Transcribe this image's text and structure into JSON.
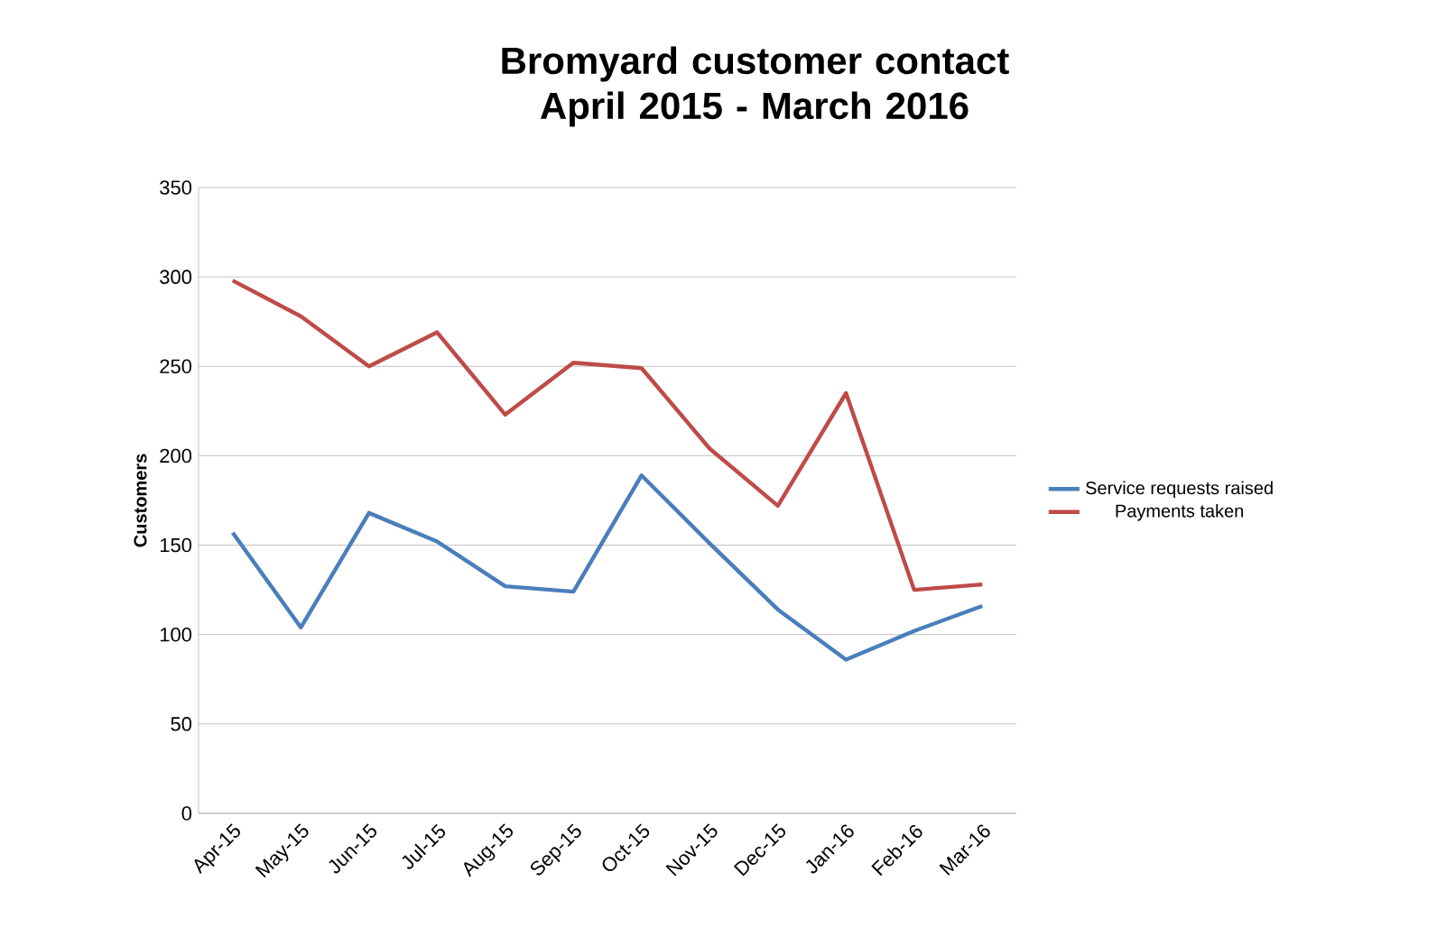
{
  "chart_data": {
    "type": "line",
    "title": "Bromyard customer contact April 2015 - March 2016",
    "ylabel": "Customers",
    "categories": [
      "Apr-15",
      "May-15",
      "Jun-15",
      "Jul-15",
      "Aug-15",
      "Sep-15",
      "Oct-15",
      "Nov-15",
      "Dec-15",
      "Jan-16",
      "Feb-16",
      "Mar-16"
    ],
    "series": [
      {
        "name": "Service requests raised",
        "color": "#4a7ebb",
        "values": [
          157,
          104,
          168,
          152,
          127,
          124,
          189,
          151,
          114,
          86,
          102,
          116
        ]
      },
      {
        "name": "Payments taken",
        "color": "#be4b48",
        "values": [
          298,
          278,
          250,
          269,
          223,
          252,
          249,
          204,
          172,
          235,
          125,
          128
        ]
      }
    ],
    "ylim": [
      0,
      350
    ],
    "yticks": [
      0,
      50,
      100,
      150,
      200,
      250,
      300,
      350
    ],
    "grid": "y",
    "legend": "right",
    "marker": "none",
    "line_style": "solid"
  }
}
